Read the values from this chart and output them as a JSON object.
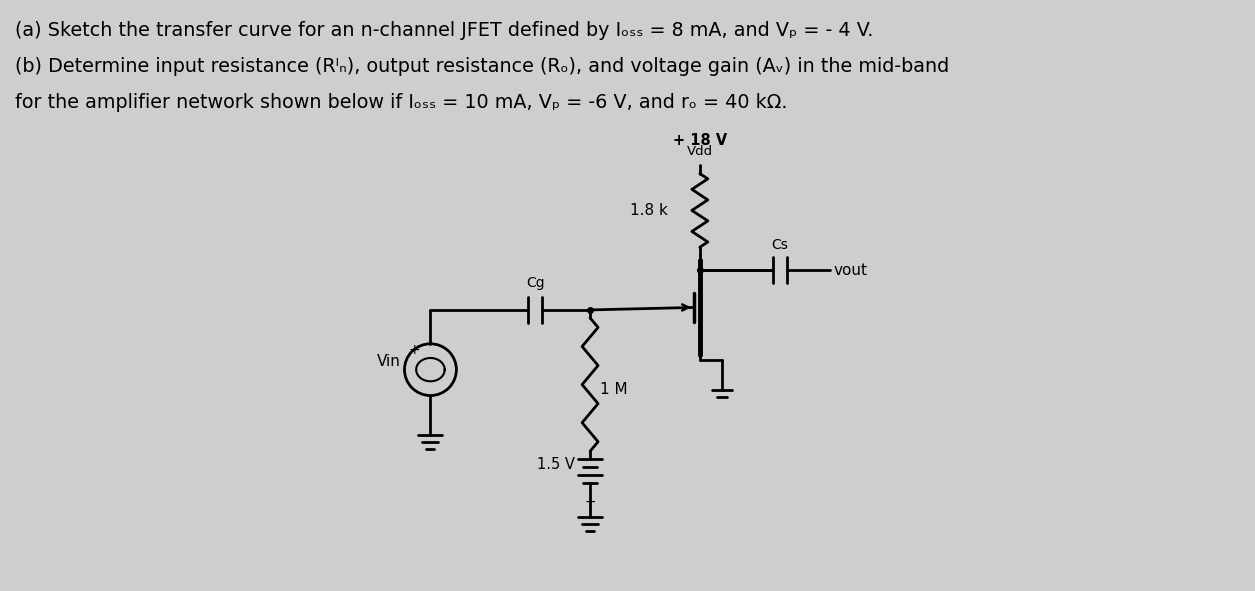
{
  "bg_color": "#cecece",
  "line1": "(a) Sketch the transfer curve for an n-channel JFET defined by Iₒₛₛ = 8 mA, and Vₚ = - 4 V.",
  "line2": "(b) Determine input resistance (Rᴵₙ), output resistance (Rₒ), and voltage gain (Aᵥ) in the mid-band",
  "line3": "for the amplifier network shown below if Iₒₛₛ = 10 mA, Vₚ = -6 V, and rₒ = 40 kΩ.",
  "vdd_label": "+ 18 V",
  "vdd_sub": "Vdd",
  "rd_label": "1.8 k",
  "cg_label": "Cg",
  "cs_label": "Cs",
  "vout_label": "vout",
  "rg_label": "1 M",
  "vbias_label": "1.5 V",
  "vin_label": "Vin",
  "lw": 2.0
}
